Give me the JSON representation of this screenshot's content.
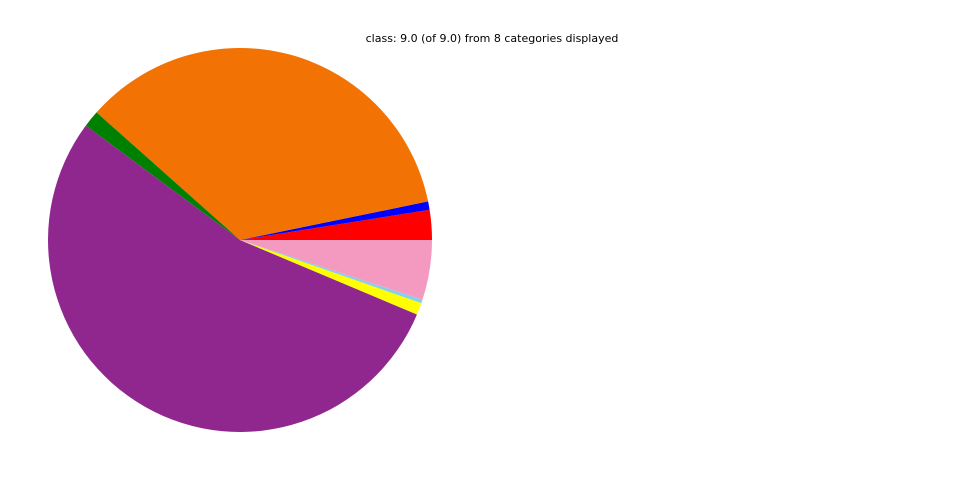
{
  "chart_data": {
    "type": "pie",
    "title": "class: 9.0 (of 9.0) from 8 categories displayed",
    "start_angle_deg": 0,
    "direction": "counterclockwise",
    "legend": "none",
    "slices": [
      {
        "value": 2.5,
        "color": "#ff0000"
      },
      {
        "value": 0.7,
        "color": "#0000ff"
      },
      {
        "value": 35.0,
        "color": "#f27304"
      },
      {
        "value": 1.4,
        "color": "#008000"
      },
      {
        "value": 53.5,
        "color": "#8f278f"
      },
      {
        "value": 1.0,
        "color": "#ffff00"
      },
      {
        "value": 0.3,
        "color": "#87ceeb"
      },
      {
        "value": 5.0,
        "color": "#f49ac1"
      }
    ]
  }
}
